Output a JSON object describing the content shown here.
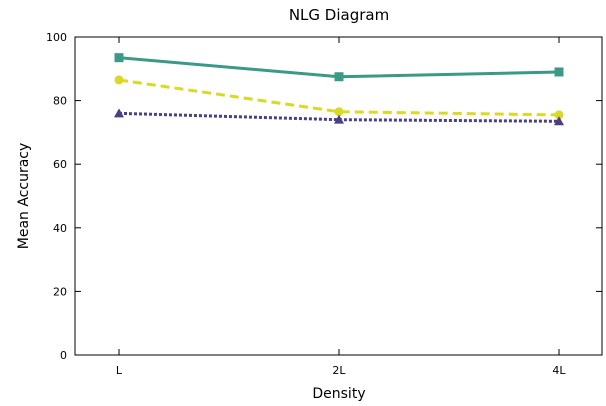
{
  "chart_data": {
    "type": "line",
    "title": "NLG Diagram",
    "xlabel": "Density",
    "ylabel": "Mean Accuracy",
    "categories": [
      "L",
      "2L",
      "4L"
    ],
    "ylim": [
      0,
      100
    ],
    "yticks": [
      0,
      20,
      40,
      60,
      80,
      100
    ],
    "grid": false,
    "legend": "none",
    "series": [
      {
        "color": "#3a9a86",
        "marker": "square",
        "dash": "solid",
        "values": [
          93.5,
          87.5,
          89.0
        ]
      },
      {
        "color": "#d9d926",
        "marker": "circle",
        "dash": "dashed",
        "values": [
          86.5,
          76.5,
          75.5
        ]
      },
      {
        "color": "#4a3f85",
        "marker": "triangle",
        "dash": "dotted",
        "values": [
          76.0,
          74.0,
          73.5
        ]
      }
    ]
  }
}
